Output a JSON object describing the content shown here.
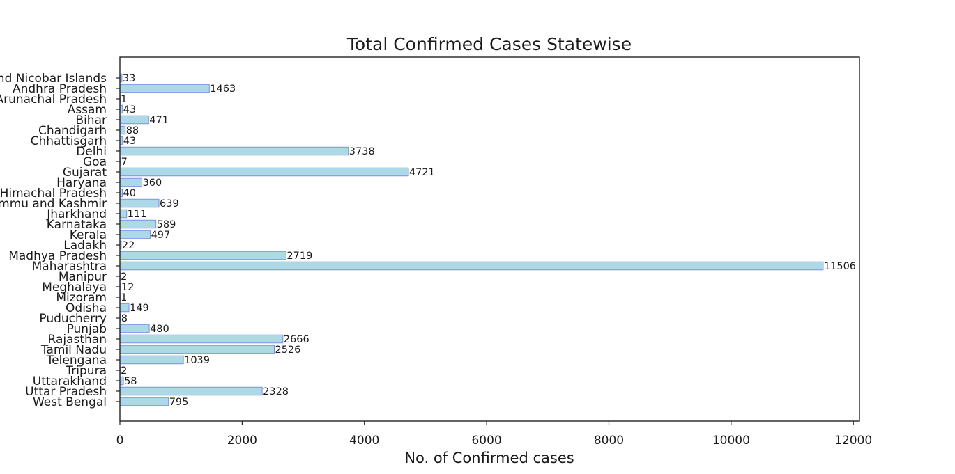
{
  "chart_data": {
    "type": "bar",
    "orientation": "horizontal",
    "title": "Total Confirmed Cases Statewise",
    "xlabel": "No. of Confirmed cases",
    "ylabel": "",
    "xlim": [
      0,
      12100
    ],
    "xticks": [
      0,
      2000,
      4000,
      6000,
      8000,
      10000,
      12000
    ],
    "grid": false,
    "legend": "none",
    "bar_color": "#add8e6",
    "bar_edge_color": "#7b8ff0",
    "categories": [
      "Andaman and Nicobar Islands",
      "Andhra Pradesh",
      "Arunachal Pradesh",
      "Assam",
      "Bihar",
      "Chandigarh",
      "Chhattisgarh",
      "Delhi",
      "Goa",
      "Gujarat",
      "Haryana",
      "Himachal Pradesh",
      "Jammu and Kashmir",
      "Jharkhand",
      "Karnataka",
      "Kerala",
      "Ladakh",
      "Madhya Pradesh",
      "Maharashtra",
      "Manipur",
      "Meghalaya",
      "Mizoram",
      "Odisha",
      "Puducherry",
      "Punjab",
      "Rajasthan",
      "Tamil Nadu",
      "Telengana",
      "Tripura",
      "Uttarakhand",
      "Uttar Pradesh",
      "West Bengal"
    ],
    "values": [
      33,
      1463,
      1,
      43,
      471,
      88,
      43,
      3738,
      7,
      4721,
      360,
      40,
      639,
      111,
      589,
      497,
      22,
      2719,
      11506,
      2,
      12,
      1,
      149,
      8,
      480,
      2666,
      2526,
      1039,
      2,
      58,
      2328,
      795
    ]
  }
}
